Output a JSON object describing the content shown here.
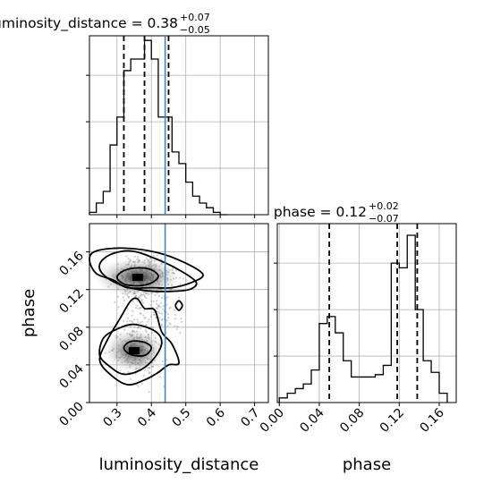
{
  "chart_data": [
    {
      "type": "histogram",
      "panel": "luminosity_distance marginal",
      "title": {
        "main": "luminosity_distance = 0.38",
        "upper": "+0.07",
        "lower": "−0.05"
      },
      "x": [
        0.22,
        0.24,
        0.26,
        0.28,
        0.3,
        0.32,
        0.34,
        0.36,
        0.38,
        0.4,
        0.42,
        0.44,
        0.46,
        0.48,
        0.5,
        0.52,
        0.54,
        0.56,
        0.58,
        0.6,
        0.62
      ],
      "values": [
        0.01,
        0.05,
        0.1,
        0.3,
        0.42,
        0.62,
        0.67,
        0.67,
        0.75,
        0.67,
        0.42,
        0.42,
        0.27,
        0.22,
        0.14,
        0.08,
        0.05,
        0.03,
        0.01,
        0.0
      ],
      "quantiles": [
        0.32,
        0.38,
        0.45
      ],
      "truth": 0.44,
      "xlim": [
        0.22,
        0.74
      ],
      "ylim": [
        0,
        0.77
      ],
      "xticks": [
        0.3,
        0.4,
        0.5,
        0.6,
        0.7
      ],
      "ytick_values": [
        0.2,
        0.4,
        0.6
      ],
      "grid": true
    },
    {
      "type": "histogram",
      "panel": "phase marginal",
      "title": {
        "main": "phase = 0.12",
        "upper": "+0.02",
        "lower": "−0.07"
      },
      "x": [
        0.0,
        0.008,
        0.016,
        0.024,
        0.032,
        0.04,
        0.048,
        0.056,
        0.064,
        0.072,
        0.08,
        0.088,
        0.096,
        0.104,
        0.112,
        0.12,
        0.128,
        0.136,
        0.144,
        0.152,
        0.16,
        0.168
      ],
      "values": [
        0.02,
        0.04,
        0.06,
        0.08,
        0.14,
        0.34,
        0.37,
        0.3,
        0.18,
        0.11,
        0.11,
        0.11,
        0.12,
        0.16,
        0.6,
        0.58,
        0.72,
        0.4,
        0.18,
        0.13,
        0.04
      ],
      "quantiles": [
        0.05,
        0.118,
        0.138
      ],
      "xlim": [
        -0.002,
        0.177
      ],
      "ylim": [
        0,
        0.77
      ],
      "xticks": [
        0.0,
        0.04,
        0.08,
        0.12,
        0.16
      ],
      "ytick_values": [
        0.2,
        0.4,
        0.6
      ],
      "grid": true
    },
    {
      "type": "scatter",
      "panel": "2D posterior",
      "xlabel": "luminosity_distance",
      "ylabel": "phase",
      "xlim": [
        0.22,
        0.74
      ],
      "ylim": [
        0.0,
        0.19
      ],
      "xticks": [
        0.3,
        0.4,
        0.5,
        0.6,
        0.7
      ],
      "xticklabels": [
        "0.3",
        "0.4",
        "0.5",
        "0.6",
        "0.7"
      ],
      "yticks": [
        0.0,
        0.04,
        0.08,
        0.12,
        0.16
      ],
      "yticklabels": [
        "0.00",
        "0.04",
        "0.08",
        "0.12",
        "0.16"
      ],
      "truth_x": 0.44,
      "density_peaks": [
        [
          0.36,
          0.133
        ],
        [
          0.35,
          0.055
        ]
      ],
      "contours": [
        [
          [
            0.3,
            0.133
          ],
          [
            0.32,
            0.14
          ],
          [
            0.36,
            0.143
          ],
          [
            0.4,
            0.141
          ],
          [
            0.42,
            0.134
          ],
          [
            0.4,
            0.127
          ],
          [
            0.36,
            0.124
          ],
          [
            0.32,
            0.126
          ]
        ],
        [
          [
            0.25,
            0.147
          ],
          [
            0.28,
            0.157
          ],
          [
            0.34,
            0.161
          ],
          [
            0.41,
            0.153
          ],
          [
            0.48,
            0.141
          ],
          [
            0.53,
            0.128
          ],
          [
            0.51,
            0.12
          ],
          [
            0.45,
            0.118
          ],
          [
            0.38,
            0.119
          ],
          [
            0.31,
            0.125
          ],
          [
            0.26,
            0.136
          ]
        ],
        [
          [
            0.32,
            0.058
          ],
          [
            0.34,
            0.065
          ],
          [
            0.38,
            0.064
          ],
          [
            0.4,
            0.058
          ],
          [
            0.38,
            0.05
          ],
          [
            0.34,
            0.051
          ]
        ],
        [
          [
            0.26,
            0.068
          ],
          [
            0.3,
            0.078
          ],
          [
            0.35,
            0.083
          ],
          [
            0.41,
            0.076
          ],
          [
            0.43,
            0.064
          ],
          [
            0.41,
            0.048
          ],
          [
            0.37,
            0.035
          ],
          [
            0.32,
            0.03
          ],
          [
            0.28,
            0.038
          ],
          [
            0.25,
            0.05
          ]
        ],
        [
          [
            0.27,
            0.065
          ],
          [
            0.31,
            0.09
          ],
          [
            0.34,
            0.108
          ],
          [
            0.36,
            0.11
          ],
          [
            0.38,
            0.1
          ],
          [
            0.41,
            0.098
          ],
          [
            0.43,
            0.075
          ],
          [
            0.46,
            0.062
          ],
          [
            0.48,
            0.042
          ],
          [
            0.45,
            0.04
          ],
          [
            0.42,
            0.032
          ],
          [
            0.38,
            0.024
          ],
          [
            0.33,
            0.019
          ],
          [
            0.28,
            0.03
          ],
          [
            0.25,
            0.045
          ]
        ],
        [
          [
            0.22,
            0.152
          ],
          [
            0.24,
            0.161
          ],
          [
            0.32,
            0.164
          ],
          [
            0.42,
            0.159
          ],
          [
            0.5,
            0.148
          ],
          [
            0.55,
            0.136
          ],
          [
            0.52,
            0.128
          ],
          [
            0.46,
            0.122
          ],
          [
            0.4,
            0.122
          ],
          [
            0.33,
            0.122
          ],
          [
            0.29,
            0.13
          ],
          [
            0.24,
            0.137
          ]
        ],
        [
          [
            0.47,
            0.103
          ],
          [
            0.48,
            0.098
          ],
          [
            0.49,
            0.103
          ],
          [
            0.48,
            0.108
          ]
        ]
      ]
    }
  ]
}
